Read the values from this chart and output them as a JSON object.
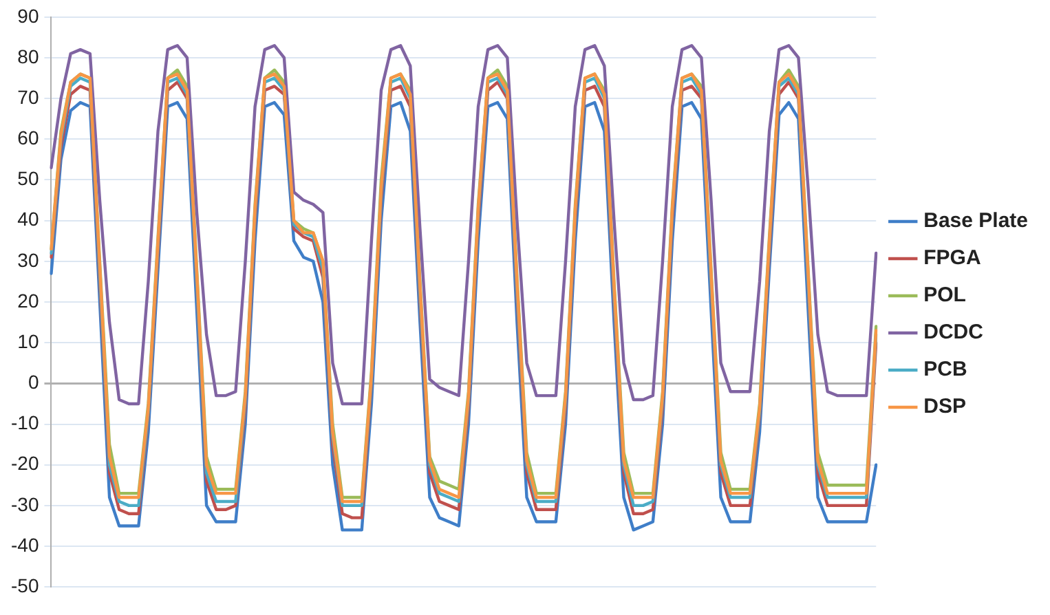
{
  "chart_data": {
    "type": "line",
    "categories": [
      null,
      null,
      null,
      null,
      null,
      null,
      null,
      null,
      null,
      null,
      null,
      null,
      null,
      null,
      null,
      null,
      null,
      null,
      null,
      null,
      null,
      null,
      null,
      null,
      null,
      null,
      null,
      null,
      null,
      null,
      null,
      null,
      null,
      null,
      null,
      null,
      null,
      null,
      null,
      null,
      null,
      null,
      null,
      null,
      null,
      null,
      null,
      null,
      null,
      null,
      null,
      null,
      null,
      null,
      null,
      null,
      null,
      null,
      null,
      null,
      null,
      null,
      null,
      null,
      null,
      null,
      null,
      null,
      null,
      null,
      null,
      null,
      null,
      null,
      null,
      null,
      null,
      null,
      null,
      null,
      null,
      null,
      null,
      null,
      null,
      null
    ],
    "ylim": [
      -50,
      90
    ],
    "yticks": [
      -50,
      -40,
      -30,
      -20,
      -10,
      0,
      10,
      20,
      30,
      40,
      50,
      60,
      70,
      80,
      90
    ],
    "grid": "y",
    "legend": "right",
    "marker": "none",
    "line_style": "solid",
    "series": [
      {
        "name": "Base Plate",
        "color": "#3f7ec8",
        "values": [
          27,
          55,
          67,
          69,
          68,
          20,
          -28,
          -35,
          -35,
          -35,
          -12,
          28,
          68,
          69,
          65,
          18,
          -30,
          -34,
          -34,
          -34,
          -10,
          35,
          68,
          69,
          66,
          35,
          31,
          30,
          20,
          -20,
          -36,
          -36,
          -36,
          -5,
          40,
          68,
          69,
          62,
          15,
          -28,
          -33,
          -34,
          -35,
          -10,
          35,
          68,
          69,
          65,
          15,
          -28,
          -34,
          -34,
          -34,
          -10,
          35,
          68,
          69,
          62,
          15,
          -28,
          -36,
          -35,
          -34,
          -10,
          35,
          68,
          69,
          65,
          18,
          -28,
          -34,
          -34,
          -34,
          -12,
          28,
          66,
          69,
          65,
          18,
          -28,
          -34,
          -34,
          -34,
          -34,
          -34,
          -20
        ]
      },
      {
        "name": "FPGA",
        "color": "#c0504d",
        "values": [
          31,
          58,
          71,
          73,
          72,
          25,
          -22,
          -31,
          -32,
          -32,
          -8,
          32,
          72,
          74,
          70,
          24,
          -24,
          -31,
          -31,
          -30,
          -6,
          40,
          72,
          73,
          71,
          38,
          36,
          35,
          26,
          -15,
          -32,
          -33,
          -33,
          0,
          45,
          72,
          73,
          68,
          20,
          -22,
          -29,
          -30,
          -31,
          -6,
          40,
          72,
          74,
          70,
          21,
          -22,
          -31,
          -31,
          -31,
          -6,
          40,
          72,
          73,
          68,
          20,
          -22,
          -32,
          -32,
          -31,
          -6,
          40,
          72,
          73,
          70,
          24,
          -22,
          -30,
          -30,
          -30,
          -8,
          32,
          71,
          74,
          70,
          24,
          -22,
          -30,
          -30,
          -30,
          -30,
          -30,
          10
        ]
      },
      {
        "name": "POL",
        "color": "#9bbb59",
        "values": [
          33,
          62,
          74,
          76,
          75,
          30,
          -15,
          -27,
          -27,
          -27,
          -5,
          36,
          75,
          77,
          73,
          28,
          -18,
          -26,
          -26,
          -26,
          -2,
          44,
          75,
          77,
          74,
          40,
          38,
          37,
          30,
          -10,
          -28,
          -28,
          -28,
          3,
          50,
          75,
          76,
          72,
          25,
          -18,
          -24,
          -25,
          -26,
          -2,
          44,
          75,
          77,
          73,
          26,
          -17,
          -27,
          -27,
          -27,
          -2,
          44,
          75,
          76,
          72,
          25,
          -17,
          -27,
          -27,
          -27,
          -2,
          44,
          75,
          76,
          73,
          28,
          -17,
          -26,
          -26,
          -26,
          -5,
          36,
          74,
          77,
          73,
          28,
          -17,
          -25,
          -25,
          -25,
          -25,
          -25,
          14
        ]
      },
      {
        "name": "DCDC",
        "color": "#8064a2",
        "values": [
          53,
          70,
          81,
          82,
          81,
          45,
          15,
          -4,
          -5,
          -5,
          25,
          62,
          82,
          83,
          80,
          42,
          12,
          -3,
          -3,
          -2,
          30,
          68,
          82,
          83,
          80,
          47,
          45,
          44,
          42,
          5,
          -5,
          -5,
          -5,
          35,
          72,
          82,
          83,
          78,
          38,
          1,
          -1,
          -2,
          -3,
          30,
          68,
          82,
          83,
          80,
          40,
          5,
          -3,
          -3,
          -3,
          30,
          68,
          82,
          83,
          78,
          40,
          5,
          -4,
          -4,
          -3,
          30,
          68,
          82,
          83,
          80,
          45,
          5,
          -2,
          -2,
          -2,
          25,
          62,
          82,
          83,
          80,
          48,
          12,
          -2,
          -3,
          -3,
          -3,
          -3,
          32
        ]
      },
      {
        "name": "PCB",
        "color": "#4bacc6",
        "values": [
          32,
          60,
          73,
          75,
          74,
          27,
          -20,
          -29,
          -30,
          -30,
          -7,
          34,
          74,
          75,
          71,
          25,
          -22,
          -29,
          -29,
          -29,
          -4,
          42,
          74,
          75,
          72,
          39,
          37,
          36,
          28,
          -13,
          -30,
          -30,
          -30,
          1,
          47,
          74,
          75,
          70,
          22,
          -20,
          -27,
          -28,
          -29,
          -4,
          42,
          74,
          75,
          71,
          23,
          -20,
          -29,
          -29,
          -29,
          -4,
          42,
          74,
          75,
          70,
          22,
          -20,
          -30,
          -30,
          -29,
          -4,
          42,
          74,
          75,
          71,
          25,
          -20,
          -28,
          -28,
          -28,
          -7,
          34,
          73,
          75,
          71,
          25,
          -20,
          -28,
          -28,
          -28,
          -28,
          -28,
          12
        ]
      },
      {
        "name": "DSP",
        "color": "#f79646",
        "values": [
          33,
          61,
          74,
          76,
          75,
          29,
          -18,
          -28,
          -28,
          -28,
          -6,
          35,
          75,
          76,
          72,
          27,
          -20,
          -27,
          -27,
          -27,
          -3,
          43,
          75,
          76,
          73,
          40,
          37,
          37,
          30,
          -12,
          -29,
          -29,
          -29,
          2,
          48,
          75,
          76,
          71,
          24,
          -19,
          -26,
          -27,
          -28,
          -3,
          43,
          75,
          76,
          72,
          25,
          -19,
          -28,
          -28,
          -28,
          -3,
          43,
          75,
          76,
          71,
          24,
          -19,
          -28,
          -28,
          -28,
          -3,
          43,
          75,
          76,
          72,
          27,
          -19,
          -27,
          -27,
          -27,
          -6,
          35,
          74,
          76,
          72,
          27,
          -19,
          -27,
          -27,
          -27,
          -27,
          -27,
          13
        ]
      }
    ]
  }
}
